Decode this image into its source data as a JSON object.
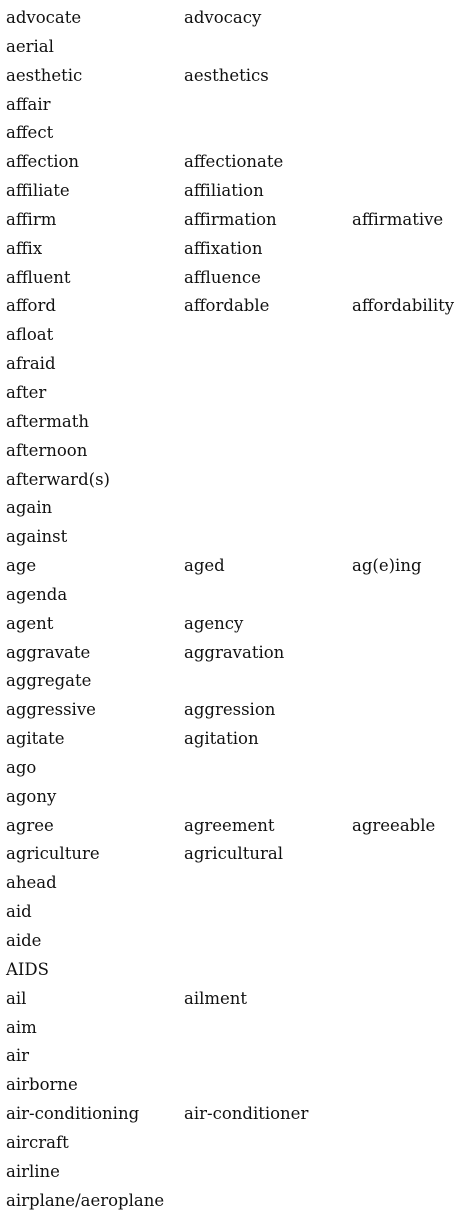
{
  "rows": [
    {
      "base": "advocate",
      "derived": "advocacy",
      "extra": ""
    },
    {
      "base": "aerial",
      "derived": "",
      "extra": ""
    },
    {
      "base": "aesthetic",
      "derived": "aesthetics",
      "extra": ""
    },
    {
      "base": "affair",
      "derived": "",
      "extra": ""
    },
    {
      "base": "affect",
      "derived": "",
      "extra": ""
    },
    {
      "base": "affection",
      "derived": "affectionate",
      "extra": ""
    },
    {
      "base": "affiliate",
      "derived": "affiliation",
      "extra": ""
    },
    {
      "base": "affirm",
      "derived": "affirmation",
      "extra": "affirmative"
    },
    {
      "base": "affix",
      "derived": "affixation",
      "extra": ""
    },
    {
      "base": "affluent",
      "derived": "affluence",
      "extra": ""
    },
    {
      "base": "afford",
      "derived": "affordable",
      "extra": "affordability"
    },
    {
      "base": "afloat",
      "derived": "",
      "extra": ""
    },
    {
      "base": "afraid",
      "derived": "",
      "extra": ""
    },
    {
      "base": "after",
      "derived": "",
      "extra": ""
    },
    {
      "base": "aftermath",
      "derived": "",
      "extra": ""
    },
    {
      "base": "afternoon",
      "derived": "",
      "extra": ""
    },
    {
      "base": "afterward(s)",
      "derived": "",
      "extra": ""
    },
    {
      "base": "again",
      "derived": "",
      "extra": ""
    },
    {
      "base": "against",
      "derived": "",
      "extra": ""
    },
    {
      "base": "age",
      "derived": "aged",
      "extra": "ag(e)ing"
    },
    {
      "base": "agenda",
      "derived": "",
      "extra": ""
    },
    {
      "base": "agent",
      "derived": "agency",
      "extra": ""
    },
    {
      "base": "aggravate",
      "derived": "aggravation",
      "extra": ""
    },
    {
      "base": "aggregate",
      "derived": "",
      "extra": ""
    },
    {
      "base": "aggressive",
      "derived": "aggression",
      "extra": ""
    },
    {
      "base": "agitate",
      "derived": "agitation",
      "extra": ""
    },
    {
      "base": "ago",
      "derived": "",
      "extra": ""
    },
    {
      "base": "agony",
      "derived": "",
      "extra": ""
    },
    {
      "base": "agree",
      "derived": "agreement",
      "extra": "agreeable"
    },
    {
      "base": "agriculture",
      "derived": "agricultural",
      "extra": ""
    },
    {
      "base": "ahead",
      "derived": "",
      "extra": ""
    },
    {
      "base": "aid",
      "derived": "",
      "extra": ""
    },
    {
      "base": "aide",
      "derived": "",
      "extra": ""
    },
    {
      "base": "AIDS",
      "derived": "",
      "extra": ""
    },
    {
      "base": "ail",
      "derived": "ailment",
      "extra": ""
    },
    {
      "base": "aim",
      "derived": "",
      "extra": ""
    },
    {
      "base": "air",
      "derived": "",
      "extra": ""
    },
    {
      "base": "airborne",
      "derived": "",
      "extra": ""
    },
    {
      "base": "air-conditioning",
      "derived": "air-conditioner",
      "extra": ""
    },
    {
      "base": "aircraft",
      "derived": "",
      "extra": ""
    },
    {
      "base": "airline",
      "derived": "",
      "extra": ""
    },
    {
      "base": "airplane/aeroplane",
      "derived": "",
      "extra": ""
    }
  ]
}
